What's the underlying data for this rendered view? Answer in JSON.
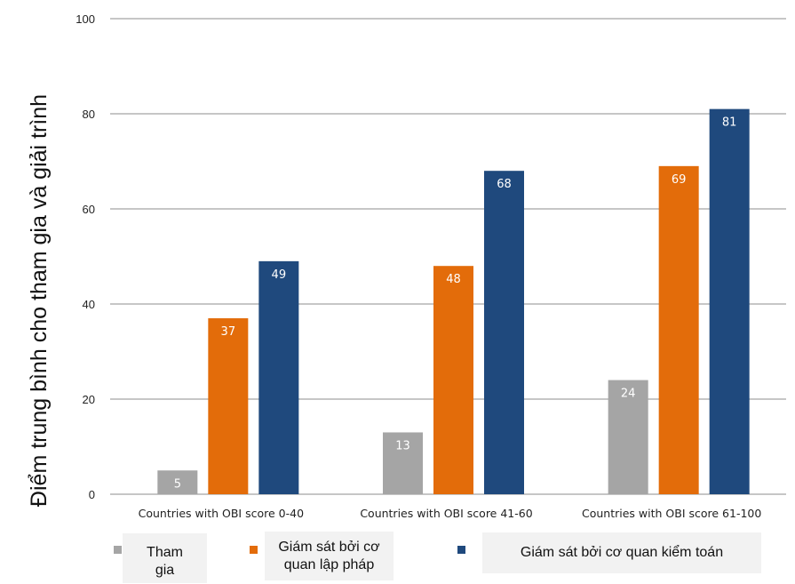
{
  "chart_data": {
    "type": "bar",
    "ylabel": "Điểm trung bình cho tham gia và giải trình",
    "ylim": [
      0,
      100
    ],
    "yticks": [
      0,
      20,
      40,
      60,
      80,
      100
    ],
    "grid": true,
    "legend_position": "bottom",
    "categories": [
      "Countries with OBI score 0-40",
      "Countries with OBI score 41-60",
      "Countries with OBI score 61-100"
    ],
    "series": [
      {
        "name": "Tham gia",
        "color": "#a5a5a5",
        "values": [
          5,
          13,
          24
        ]
      },
      {
        "name": "Giám sát bởi cơ quan lập pháp",
        "color": "#e36c0a",
        "values": [
          37,
          48,
          69
        ]
      },
      {
        "name": "Giám sát bởi cơ quan kiểm toán",
        "color": "#1f497d",
        "values": [
          49,
          68,
          81
        ]
      }
    ]
  }
}
